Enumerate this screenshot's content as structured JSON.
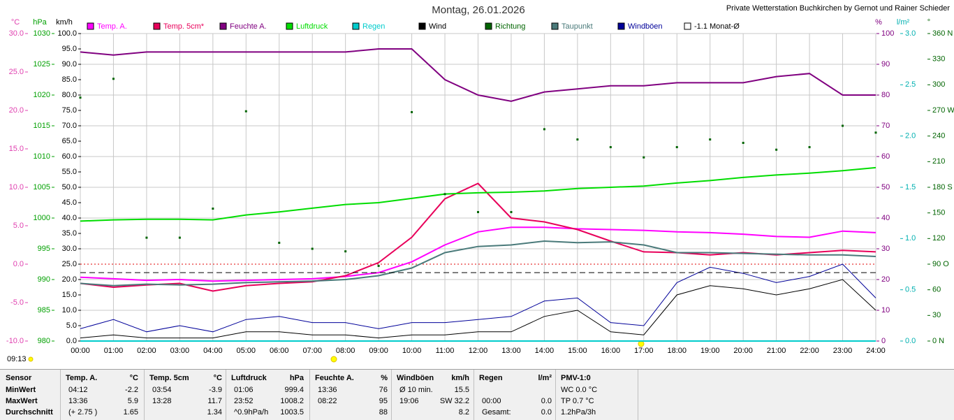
{
  "chart_data": {
    "type": "line",
    "title": "Montag, 26.01.2026",
    "credit": "Private Wetterstation Buchkirchen by Gernot und Rainer Schieder",
    "categories": [
      "00:00",
      "01:00",
      "02:00",
      "03:00",
      "04:00",
      "05:00",
      "06:00",
      "07:00",
      "08:00",
      "09:00",
      "10:00",
      "11:00",
      "12:00",
      "13:00",
      "14:00",
      "15:00",
      "16:00",
      "17:00",
      "18:00",
      "19:00",
      "20:00",
      "21:00",
      "22:00",
      "23:00",
      "24:00"
    ],
    "grid": "%",
    "axes": [
      {
        "unit": "°C",
        "color": "#e040b0",
        "lim": [
          -10,
          30
        ],
        "ticks": [
          {
            "value": 30,
            "label": "30.0"
          },
          {
            "value": 25,
            "label": "25.0"
          },
          {
            "value": 20,
            "label": "20.0"
          },
          {
            "value": 15,
            "label": "15.0"
          },
          {
            "value": 10,
            "label": "10.0"
          },
          {
            "value": 5,
            "label": "5.0"
          },
          {
            "value": 0,
            "label": "0.0"
          },
          {
            "value": -5,
            "label": "-5.0"
          },
          {
            "value": -10,
            "label": "-10.0"
          }
        ]
      },
      {
        "unit": "hPa",
        "color": "#00a000",
        "lim": [
          980,
          1030
        ],
        "ticks": [
          1030,
          1025,
          1020,
          1015,
          1010,
          1005,
          1000,
          995,
          990,
          985,
          980
        ]
      },
      {
        "unit": "km/h",
        "color": "#000000",
        "lim": [
          0,
          100
        ],
        "ticks": [
          {
            "value": 100,
            "label": "100.0"
          },
          {
            "value": 95,
            "label": "95.0"
          },
          {
            "value": 90,
            "label": "90.0"
          },
          {
            "value": 85,
            "label": "85.0"
          },
          {
            "value": 80,
            "label": "80.0"
          },
          {
            "value": 75,
            "label": "75.0"
          },
          {
            "value": 70,
            "label": "70.0"
          },
          {
            "value": 65,
            "label": "65.0"
          },
          {
            "value": 60,
            "label": "60.0"
          },
          {
            "value": 55,
            "label": "55.0"
          },
          {
            "value": 50,
            "label": "50.0"
          },
          {
            "value": 45,
            "label": "45.0"
          },
          {
            "value": 40,
            "label": "40.0"
          },
          {
            "value": 35,
            "label": "35.0"
          },
          {
            "value": 30,
            "label": "30.0"
          },
          {
            "value": 25,
            "label": "25.0"
          },
          {
            "value": 20,
            "label": "20.0"
          },
          {
            "value": 15,
            "label": "15.0"
          },
          {
            "value": 10,
            "label": "10.0"
          },
          {
            "value": 5,
            "label": "5.0"
          },
          {
            "value": 0,
            "label": "0.0"
          }
        ]
      },
      {
        "unit": "%",
        "color": "#800080",
        "lim": [
          0,
          100
        ],
        "ticks": [
          100,
          90,
          80,
          70,
          60,
          50,
          40,
          30,
          20,
          10,
          0
        ]
      },
      {
        "unit": "l/m²",
        "color": "#00b0b0",
        "lim": [
          0,
          3
        ],
        "ticks": [
          {
            "value": 3,
            "label": "3.0"
          },
          {
            "value": 2.5,
            "label": "2.5"
          },
          {
            "value": 2,
            "label": "2.0"
          },
          {
            "value": 1.5,
            "label": "1.5"
          },
          {
            "value": 1,
            "label": "1.0"
          },
          {
            "value": 0.5,
            "label": "0.5"
          },
          {
            "value": 0,
            "label": "0.0"
          }
        ]
      },
      {
        "unit": "°",
        "color": "#006400",
        "lim": [
          0,
          360
        ],
        "ticks": [
          {
            "value": 360,
            "label": "360 N"
          },
          330,
          300,
          {
            "value": 270,
            "label": "270 W"
          },
          240,
          210,
          {
            "value": 180,
            "label": "180 S"
          },
          150,
          120,
          {
            "value": 90,
            "label": "90 O"
          },
          60,
          30,
          {
            "value": 0,
            "label": "0 N"
          }
        ]
      }
    ],
    "series": [
      {
        "name": "Temp. A.",
        "color": "#ff00ff",
        "axis": "°C",
        "values": [
          -1.7,
          -1.9,
          -2.1,
          -2,
          -2.2,
          -2.1,
          -2,
          -1.9,
          -1.6,
          -1.1,
          0.3,
          2.5,
          4.2,
          4.8,
          4.8,
          4.6,
          4.5,
          4.4,
          4.2,
          4.1,
          3.9,
          3.6,
          3.5,
          4.3,
          4.1
        ]
      },
      {
        "name": "Temp. 5cm*",
        "color": "#e8005a",
        "axis": "°C",
        "values": [
          -2.5,
          -3,
          -2.7,
          -2.5,
          -3.5,
          -2.8,
          -2.5,
          -2.3,
          -1.5,
          0.2,
          3.5,
          8.5,
          10.5,
          6,
          5.5,
          4.5,
          3,
          1.6,
          1.5,
          1.2,
          1.5,
          1.2,
          1.5,
          1.8,
          1.6
        ]
      },
      {
        "name": "Feuchte A.",
        "color": "#800080",
        "axis": "%",
        "values": [
          94,
          93,
          94,
          94,
          94,
          94,
          94,
          94,
          94,
          95,
          95,
          85,
          80,
          78,
          81,
          82,
          83,
          83,
          84,
          84,
          84,
          86,
          87,
          80,
          80
        ]
      },
      {
        "name": "Luftdruck",
        "color": "#00dd00",
        "axis": "hPa",
        "values": [
          999.5,
          999.7,
          999.8,
          999.8,
          999.7,
          1000.5,
          1001,
          1001.6,
          1002.2,
          1002.5,
          1003.2,
          1003.9,
          1004.1,
          1004.2,
          1004.4,
          1004.8,
          1005,
          1005.2,
          1005.7,
          1006.1,
          1006.6,
          1007,
          1007.3,
          1007.7,
          1008.2
        ]
      },
      {
        "name": "Regen",
        "color": "#00cccc",
        "axis": "l/m²",
        "values": [
          0,
          0,
          0,
          0,
          0,
          0,
          0,
          0,
          0,
          0,
          0,
          0,
          0,
          0,
          0,
          0,
          0,
          0,
          0,
          0,
          0,
          0,
          0,
          0,
          0
        ]
      },
      {
        "name": "Wind",
        "color": "#000000",
        "axis": "km/h",
        "values": [
          1,
          2,
          1,
          1,
          1,
          3,
          3,
          2,
          2,
          1,
          2,
          2,
          3,
          3,
          8,
          10,
          3,
          2,
          15,
          18,
          17,
          15,
          17,
          20,
          10
        ]
      },
      {
        "name": "Richtung",
        "color": "#006400",
        "axis": "°",
        "style": "dots",
        "values": [
          285,
          307,
          121,
          121,
          155,
          269,
          115,
          108,
          105,
          88,
          268,
          172,
          151,
          151,
          248,
          236,
          227,
          215,
          227,
          236,
          232,
          224,
          227,
          252,
          244
        ]
      },
      {
        "name": "Taupunkt",
        "color": "#4a7a7a",
        "axis": "°C",
        "values": [
          -2.5,
          -2.8,
          -2.6,
          -2.7,
          -2.6,
          -2.4,
          -2.3,
          -2.2,
          -2,
          -1.5,
          -0.5,
          1.5,
          2.3,
          2.5,
          3,
          2.8,
          2.9,
          2.5,
          1.5,
          1.5,
          1.4,
          1.3,
          1.2,
          1.2,
          1
        ]
      },
      {
        "name": "Windböen",
        "color": "#000099",
        "axis": "km/h",
        "values": [
          4,
          7,
          3,
          5,
          3,
          7,
          8,
          6,
          6,
          4,
          6,
          6,
          7,
          8,
          13,
          14,
          6,
          5,
          19,
          24,
          22,
          19,
          21,
          25,
          14
        ]
      },
      {
        "name": "-1.1 Monat-Ø",
        "color": "#000000",
        "axis": "°C",
        "value": -1.1
      }
    ]
  },
  "updated": "09:13",
  "table": {
    "row_labels": [
      "Sensor",
      "MinWert",
      "MaxWert",
      "Durchschnitt"
    ],
    "groups": [
      {
        "header": [
          "Temp. A.",
          "°C"
        ],
        "rows": [
          [
            "04:12",
            "-2.2"
          ],
          [
            "13:36",
            "5.9"
          ],
          [
            "(+ 2.75 )",
            "1.65"
          ]
        ]
      },
      {
        "header": [
          "Temp. 5cm",
          "°C"
        ],
        "rows": [
          [
            "03:54",
            "-3.9"
          ],
          [
            "13:28",
            "11.7"
          ],
          [
            null,
            "1.34"
          ]
        ]
      },
      {
        "header": [
          "Luftdruck",
          "hPa"
        ],
        "rows": [
          [
            "01:06",
            "999.4"
          ],
          [
            "23:52",
            "1008.2"
          ],
          [
            "^0.9hPa/h",
            "1003.5"
          ]
        ]
      },
      {
        "header": [
          "Feuchte A.",
          "%"
        ],
        "rows": [
          [
            "13:36",
            "76"
          ],
          [
            "08:22",
            "95"
          ],
          [
            null,
            "88"
          ]
        ]
      },
      {
        "header": [
          "Windböen",
          "km/h"
        ],
        "rows": [
          [
            "Ø 10 min.",
            "15.5"
          ],
          [
            "19:06",
            "SW 32.2"
          ],
          [
            null,
            "8.2"
          ]
        ]
      },
      {
        "header": [
          "Regen",
          "l/m²"
        ],
        "rows": [
          [
            null,
            null
          ],
          [
            "00:00",
            "0.0"
          ],
          [
            "Gesamt:",
            "0.0"
          ]
        ]
      },
      {
        "header": [
          "PMV-1:0"
        ],
        "rows": [
          [
            "WC 0.0 °C"
          ],
          [
            "TP 0.7 °C"
          ],
          [
            "1.2hPa/3h"
          ]
        ]
      }
    ]
  }
}
